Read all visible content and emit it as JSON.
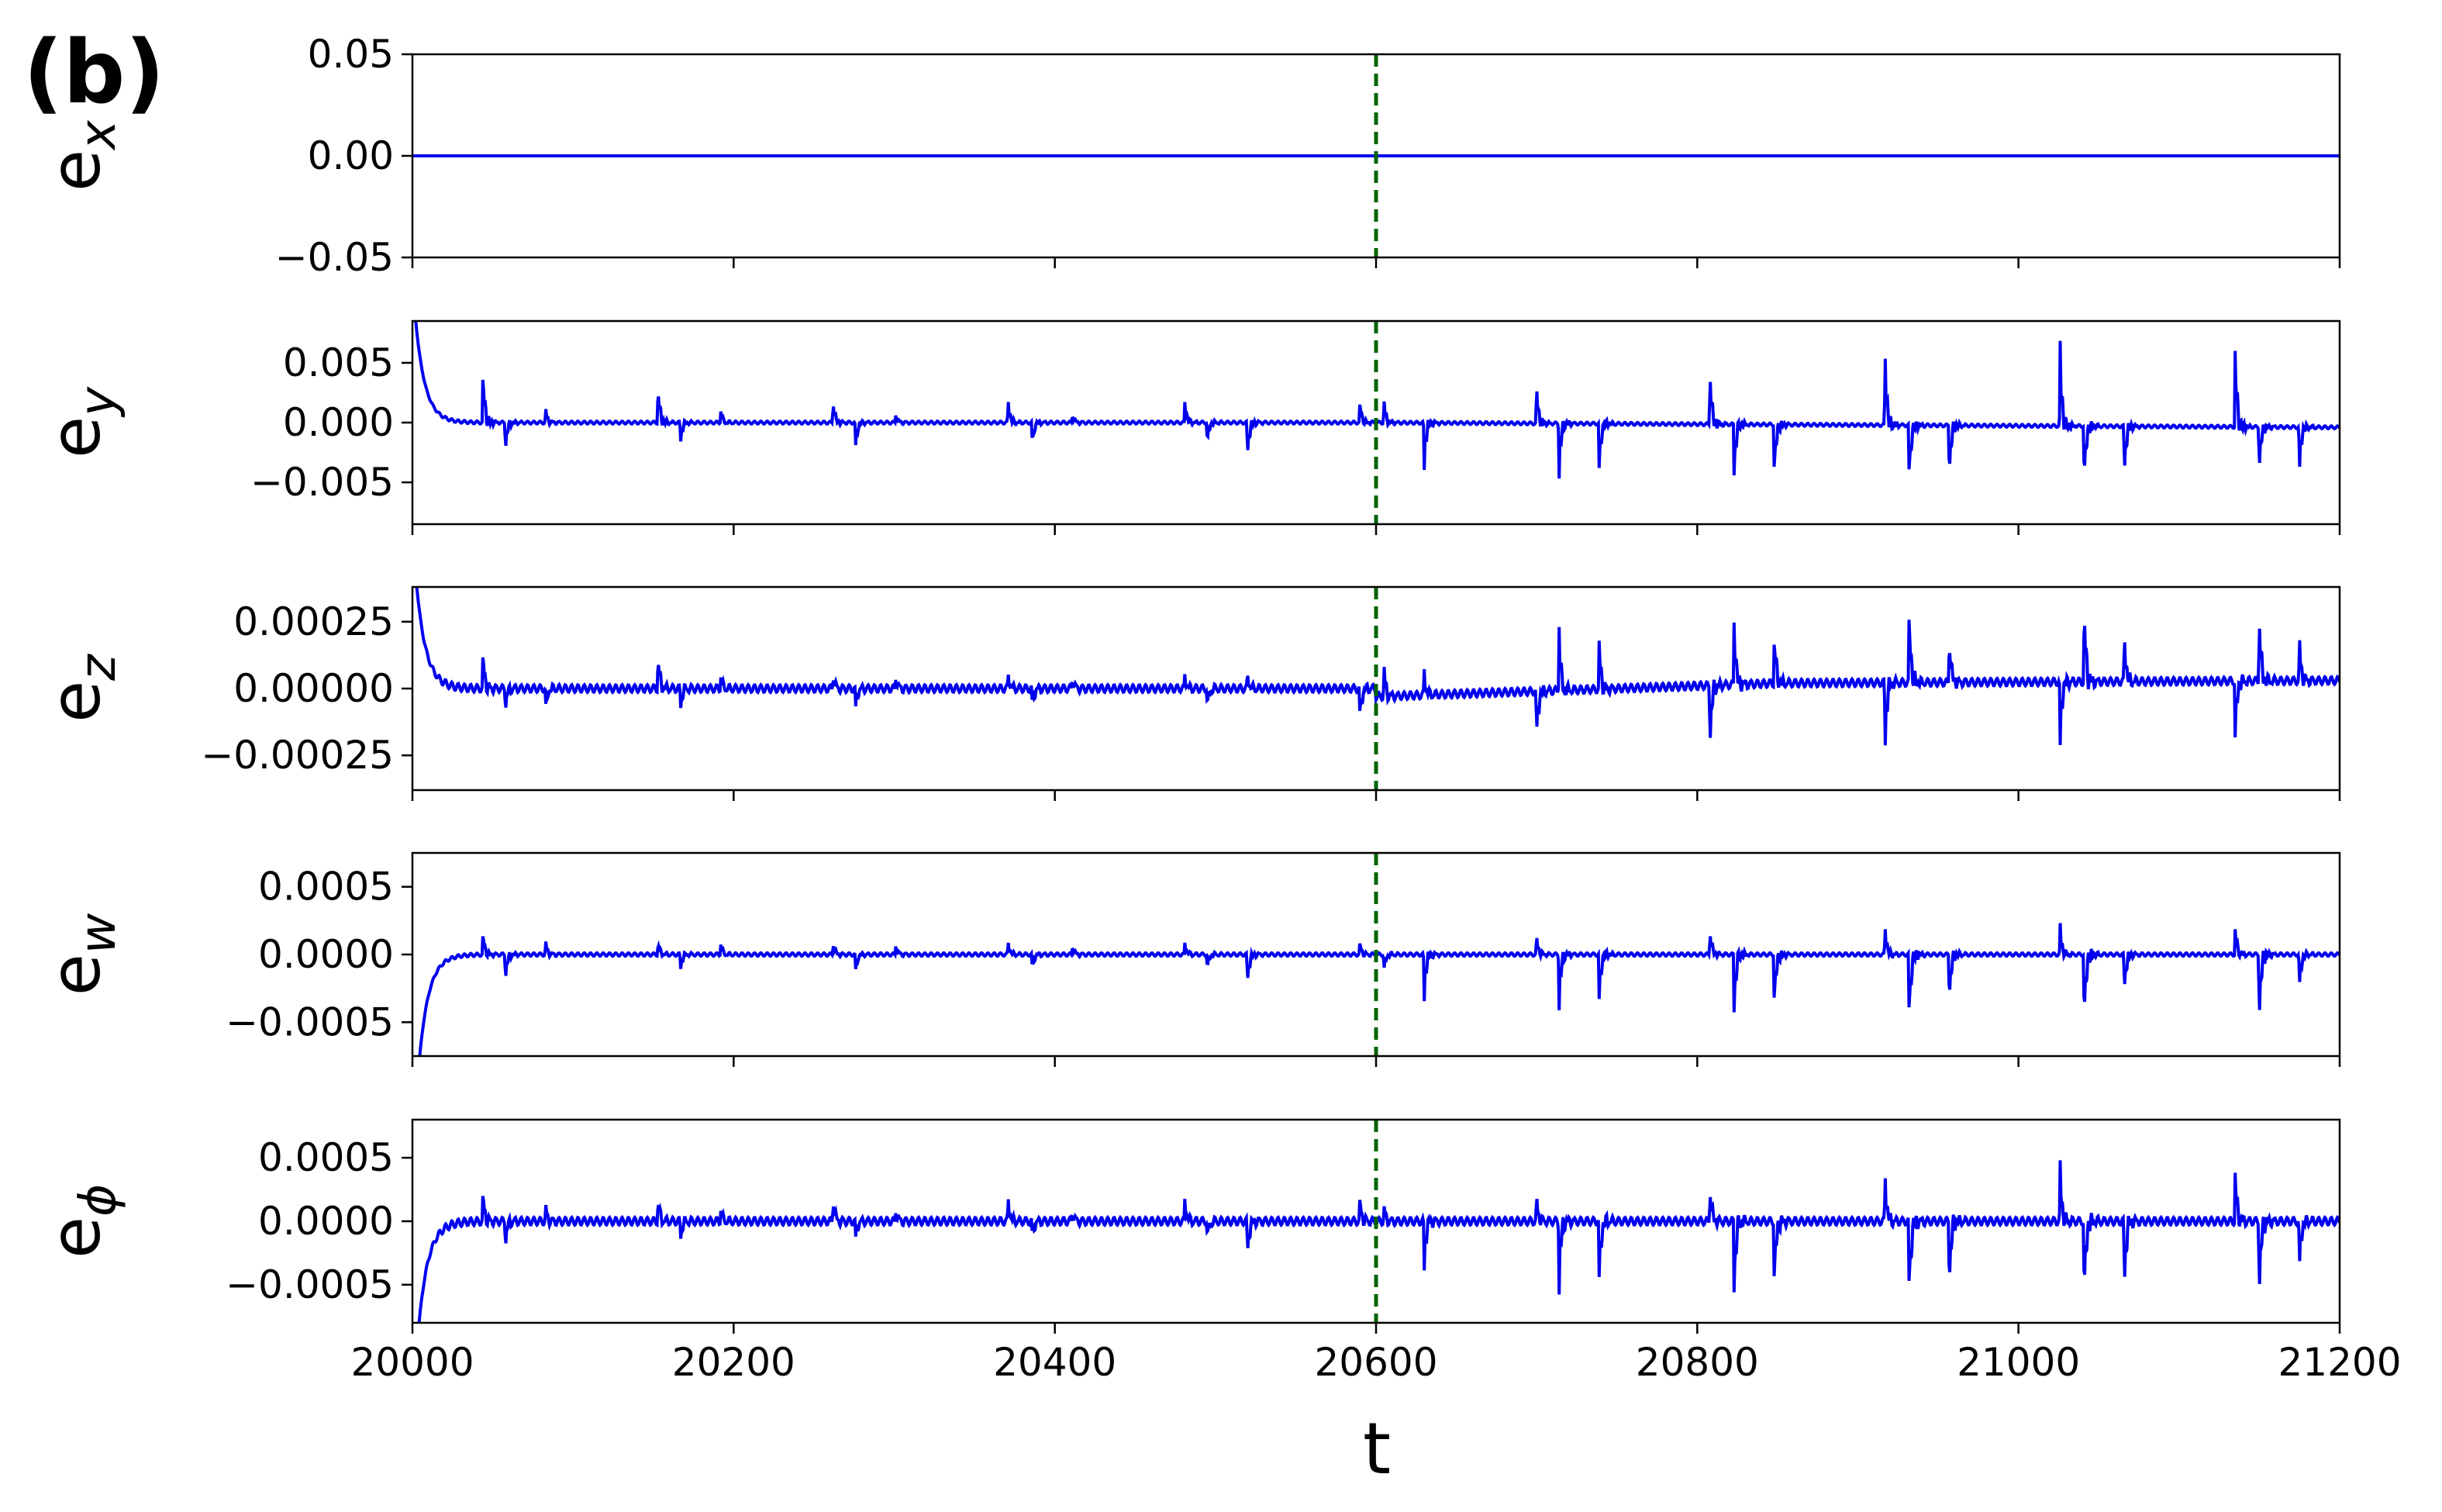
{
  "panel_label": "(b)",
  "colors": {
    "series": "#0000ee",
    "marker": "#006400",
    "axes": "#000000"
  },
  "chart_data": {
    "type": "line",
    "layout": "5 vertically stacked subplots sharing the x axis",
    "xlabel": "t",
    "xlim": [
      20000,
      21200
    ],
    "xticks": [
      20000,
      20200,
      20400,
      20600,
      20800,
      21000,
      21200
    ],
    "xtick_labels": [
      "20000",
      "20200",
      "20400",
      "20600",
      "20800",
      "21000",
      "21200"
    ],
    "vline": {
      "x": 20600,
      "style": "dashed",
      "color": "#006400"
    },
    "grid": false,
    "subplots": [
      {
        "id": "ex",
        "ylabel_base": "e",
        "ylabel_sub": "x",
        "ylim": [
          -0.05,
          0.05
        ],
        "yticks": [
          0.05,
          0.0,
          -0.05
        ],
        "ytick_labels": [
          "0.05",
          "0.00",
          "−0.05"
        ],
        "signal": {
          "baseline": 0.0,
          "transient": 0.0,
          "ripple": 0.0,
          "events": []
        }
      },
      {
        "id": "ey",
        "ylabel_base": "e",
        "ylabel_sub": "y",
        "ylim": [
          -0.0085,
          0.0085
        ],
        "yticks": [
          0.005,
          0.0,
          -0.005
        ],
        "ytick_labels": [
          "0.005",
          "0.000",
          "−0.005"
        ],
        "signal": {
          "baseline": 0.0,
          "transient": 0.012,
          "ripple": 0.00012,
          "drift": [
            [
              20600,
              0.0
            ],
            [
              21200,
              -0.0004
            ]
          ],
          "events": [
            {
              "t": 20044,
              "a": 0.005
            },
            {
              "t": 20058,
              "a": -0.0025
            },
            {
              "t": 20083,
              "a": 0.0012
            },
            {
              "t": 20153,
              "a": 0.0035
            },
            {
              "t": 20167,
              "a": -0.0018
            },
            {
              "t": 20192,
              "a": 0.001
            },
            {
              "t": 20262,
              "a": 0.002
            },
            {
              "t": 20276,
              "a": -0.002
            },
            {
              "t": 20301,
              "a": 0.0008
            },
            {
              "t": 20371,
              "a": 0.002
            },
            {
              "t": 20386,
              "a": -0.002
            },
            {
              "t": 20411,
              "a": 0.0008
            },
            {
              "t": 20481,
              "a": 0.002
            },
            {
              "t": 20495,
              "a": -0.002
            },
            {
              "t": 20520,
              "a": -0.0032
            },
            {
              "t": 20590,
              "a": 0.002
            },
            {
              "t": 20605,
              "a": 0.002
            },
            {
              "t": 20630,
              "a": -0.004
            },
            {
              "t": 20700,
              "a": 0.0035
            },
            {
              "t": 20714,
              "a": -0.0045
            },
            {
              "t": 20739,
              "a": -0.0045
            },
            {
              "t": 20808,
              "a": 0.005
            },
            {
              "t": 20823,
              "a": -0.005
            },
            {
              "t": 20848,
              "a": -0.005
            },
            {
              "t": 20917,
              "a": 0.0065
            },
            {
              "t": 20932,
              "a": -0.0055
            },
            {
              "t": 20957,
              "a": -0.005
            },
            {
              "t": 21026,
              "a": 0.007
            },
            {
              "t": 21041,
              "a": -0.0055
            },
            {
              "t": 21066,
              "a": -0.0045
            },
            {
              "t": 21135,
              "a": 0.0075
            },
            {
              "t": 21150,
              "a": -0.004
            },
            {
              "t": 21175,
              "a": -0.004
            }
          ]
        }
      },
      {
        "id": "ez",
        "ylabel_base": "e",
        "ylabel_sub": "z",
        "ylim": [
          -0.00038,
          0.00038
        ],
        "yticks": [
          0.00025,
          0.0,
          -0.00025
        ],
        "ytick_labels": [
          "0.00025",
          "0.00000",
          "−0.00025"
        ],
        "signal": {
          "baseline": 0.0,
          "transient": 0.0006,
          "ripple": 1.4e-05,
          "drift": [
            [
              20600,
              -3e-05
            ],
            [
              20850,
              2e-05
            ],
            [
              21200,
              3e-05
            ]
          ],
          "events": [
            {
              "t": 20044,
              "a": 0.00015
            },
            {
              "t": 20058,
              "a": -8e-05
            },
            {
              "t": 20083,
              "a": -8e-05
            },
            {
              "t": 20153,
              "a": 0.00014
            },
            {
              "t": 20167,
              "a": -8e-05
            },
            {
              "t": 20192,
              "a": 5e-05
            },
            {
              "t": 20262,
              "a": 6e-05
            },
            {
              "t": 20276,
              "a": -8e-05
            },
            {
              "t": 20301,
              "a": 5e-05
            },
            {
              "t": 20371,
              "a": 6e-05
            },
            {
              "t": 20386,
              "a": -8e-05
            },
            {
              "t": 20411,
              "a": 5e-05
            },
            {
              "t": 20481,
              "a": 6e-05
            },
            {
              "t": 20495,
              "a": -8e-05
            },
            {
              "t": 20520,
              "a": 6e-05
            },
            {
              "t": 20590,
              "a": -0.00014
            },
            {
              "t": 20605,
              "a": 0.00012
            },
            {
              "t": 20630,
              "a": 9e-05
            },
            {
              "t": 20700,
              "a": -0.0002
            },
            {
              "t": 20714,
              "a": 0.00025
            },
            {
              "t": 20739,
              "a": 0.0002
            },
            {
              "t": 20808,
              "a": -0.00025
            },
            {
              "t": 20823,
              "a": 0.00028
            },
            {
              "t": 20848,
              "a": 0.00022
            },
            {
              "t": 20917,
              "a": -0.00027
            },
            {
              "t": 20932,
              "a": 0.00032
            },
            {
              "t": 20957,
              "a": 0.0002
            },
            {
              "t": 21026,
              "a": -0.00025
            },
            {
              "t": 21041,
              "a": 0.00032
            },
            {
              "t": 21066,
              "a": 0.0002
            },
            {
              "t": 21135,
              "a": -0.00025
            },
            {
              "t": 21150,
              "a": 0.00028
            },
            {
              "t": 21175,
              "a": 0.00016
            }
          ]
        }
      },
      {
        "id": "ew",
        "ylabel_base": "e",
        "ylabel_sub": "w",
        "ylim": [
          -0.00075,
          0.00075
        ],
        "yticks": [
          0.0005,
          0.0,
          -0.0005
        ],
        "ytick_labels": [
          "0.0005",
          "0.0000",
          "−0.0005"
        ],
        "signal": {
          "baseline": 0.0,
          "transient": -0.0016,
          "ripple": 1.2e-05,
          "events": [
            {
              "t": 20044,
              "a": 0.00018
            },
            {
              "t": 20058,
              "a": -0.0002
            },
            {
              "t": 20083,
              "a": 0.0001
            },
            {
              "t": 20153,
              "a": 0.0001
            },
            {
              "t": 20167,
              "a": -0.00012
            },
            {
              "t": 20192,
              "a": 8e-05
            },
            {
              "t": 20262,
              "a": 0.0001
            },
            {
              "t": 20276,
              "a": -0.00012
            },
            {
              "t": 20301,
              "a": 8e-05
            },
            {
              "t": 20371,
              "a": 0.0001
            },
            {
              "t": 20386,
              "a": -0.00012
            },
            {
              "t": 20411,
              "a": 8e-05
            },
            {
              "t": 20481,
              "a": 0.0001
            },
            {
              "t": 20495,
              "a": -0.00012
            },
            {
              "t": 20520,
              "a": -0.00024
            },
            {
              "t": 20590,
              "a": 0.0001
            },
            {
              "t": 20605,
              "a": -0.00012
            },
            {
              "t": 20630,
              "a": -0.00035
            },
            {
              "t": 20700,
              "a": 0.00015
            },
            {
              "t": 20714,
              "a": -0.0004
            },
            {
              "t": 20739,
              "a": -0.0004
            },
            {
              "t": 20808,
              "a": 0.0002
            },
            {
              "t": 20823,
              "a": -0.0005
            },
            {
              "t": 20848,
              "a": -0.00045
            },
            {
              "t": 20917,
              "a": 0.00022
            },
            {
              "t": 20932,
              "a": -0.00058
            },
            {
              "t": 20957,
              "a": -0.0004
            },
            {
              "t": 21026,
              "a": 0.00022
            },
            {
              "t": 21041,
              "a": -0.00058
            },
            {
              "t": 21066,
              "a": -0.0003
            },
            {
              "t": 21135,
              "a": 0.00022
            },
            {
              "t": 21150,
              "a": -0.00055
            },
            {
              "t": 21175,
              "a": -0.00025
            }
          ]
        }
      },
      {
        "id": "ephi",
        "ylabel_base": "e",
        "ylabel_sub": "ϕ",
        "ylim": [
          -0.0008,
          0.0008
        ],
        "yticks": [
          0.0005,
          0.0,
          -0.0005
        ],
        "ytick_labels": [
          "0.0005",
          "0.0000",
          "−0.0005"
        ],
        "signal": {
          "baseline": 0.0,
          "transient": -0.0016,
          "ripple": 3e-05,
          "events": [
            {
              "t": 20044,
              "a": 0.00025
            },
            {
              "t": 20058,
              "a": -0.0002
            },
            {
              "t": 20083,
              "a": 0.00012
            },
            {
              "t": 20153,
              "a": 0.0002
            },
            {
              "t": 20167,
              "a": -0.00015
            },
            {
              "t": 20192,
              "a": 0.0001
            },
            {
              "t": 20262,
              "a": 0.0002
            },
            {
              "t": 20276,
              "a": -0.00015
            },
            {
              "t": 20301,
              "a": 0.0001
            },
            {
              "t": 20371,
              "a": 0.0002
            },
            {
              "t": 20386,
              "a": -0.00015
            },
            {
              "t": 20411,
              "a": 0.0001
            },
            {
              "t": 20481,
              "a": 0.0002
            },
            {
              "t": 20495,
              "a": -0.00015
            },
            {
              "t": 20520,
              "a": -0.0003
            },
            {
              "t": 20590,
              "a": 0.0002
            },
            {
              "t": 20605,
              "a": 0.00012
            },
            {
              "t": 20630,
              "a": -0.0004
            },
            {
              "t": 20700,
              "a": 0.0002
            },
            {
              "t": 20714,
              "a": -0.00055
            },
            {
              "t": 20739,
              "a": -0.00055
            },
            {
              "t": 20808,
              "a": 0.0003
            },
            {
              "t": 20823,
              "a": -0.00065
            },
            {
              "t": 20848,
              "a": -0.0006
            },
            {
              "t": 20917,
              "a": 0.0004
            },
            {
              "t": 20932,
              "a": -0.00072
            },
            {
              "t": 20957,
              "a": -0.0006
            },
            {
              "t": 21026,
              "a": 0.00045
            },
            {
              "t": 21041,
              "a": -0.00072
            },
            {
              "t": 21066,
              "a": -0.0006
            },
            {
              "t": 21135,
              "a": 0.00045
            },
            {
              "t": 21150,
              "a": -0.00065
            },
            {
              "t": 21175,
              "a": -0.0004
            }
          ]
        }
      }
    ]
  }
}
